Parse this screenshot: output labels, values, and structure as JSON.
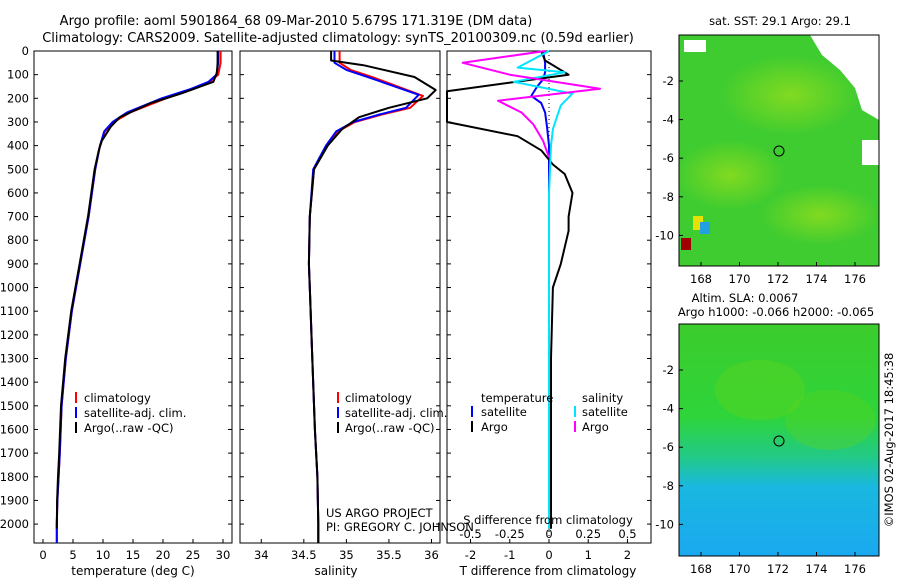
{
  "header": {
    "title_line1": "Argo profile: aoml 5901864_68 09-Mar-2010 5.679S 171.319E (DM data)",
    "title_line2": "Climatology: CARS2009. Satellite-adjusted climatology: synTS_20100309.nc (0.59d earlier)"
  },
  "colors": {
    "climatology": "#ff0000",
    "satellite": "#0000ff",
    "argo": "#000000",
    "satellite_sal": "#00e5ff",
    "argo_sal": "#ff00ff"
  },
  "depth_axis": {
    "ticks": [
      0,
      100,
      200,
      300,
      400,
      500,
      600,
      700,
      800,
      900,
      1000,
      1100,
      1200,
      1300,
      1400,
      1500,
      1600,
      1700,
      1800,
      1900,
      2000
    ],
    "range": [
      0,
      2080
    ]
  },
  "chart_data": [
    {
      "type": "line",
      "name": "temperature",
      "xlabel": "temperature (deg C)",
      "xlim": [
        -1.5,
        31.5
      ],
      "xticks": [
        0,
        5,
        10,
        15,
        20,
        25,
        30
      ],
      "legend": [
        "climatology",
        "satellite-adj. clim.",
        "Argo(..raw -QC)"
      ],
      "series": [
        {
          "name": "climatology",
          "color": "#ff0000",
          "temp": [
            29.6,
            29.6,
            29.2,
            27.8,
            25.2,
            20.5,
            14.5,
            11.8,
            10.3,
            9.5,
            8.7,
            7.6,
            6.9,
            6.2,
            5.5,
            4.8,
            3.8,
            3.1,
            2.8,
            2.6,
            2.4,
            2.3,
            2.3
          ],
          "depth": [
            0,
            50,
            100,
            130,
            160,
            200,
            260,
            300,
            340,
            400,
            500,
            700,
            800,
            900,
            1000,
            1100,
            1300,
            1500,
            1700,
            1800,
            1900,
            2000,
            2080
          ]
        },
        {
          "name": "satellite",
          "color": "#0000ff",
          "temp": [
            29.2,
            29.2,
            28.9,
            27.6,
            24.7,
            19.8,
            14.0,
            11.6,
            10.2,
            9.5,
            8.7,
            7.6,
            6.9,
            6.2,
            5.5,
            4.8,
            3.8,
            3.1,
            2.8,
            2.6,
            2.4,
            2.3,
            2.3
          ],
          "depth": [
            0,
            50,
            100,
            130,
            160,
            200,
            260,
            300,
            340,
            400,
            500,
            700,
            800,
            900,
            1000,
            1100,
            1300,
            1500,
            1700,
            1800,
            1900,
            2000,
            2080
          ]
        },
        {
          "name": "argo",
          "color": "#000000",
          "temp": [
            29.1,
            29.1,
            29.0,
            28.4,
            23.0,
            18.0,
            12.8,
            11.3,
            9.8,
            9.3,
            8.6,
            7.5,
            6.8,
            6.1,
            5.4,
            4.7,
            3.7,
            3.0,
            2.7,
            2.5,
            2.35,
            2.3
          ],
          "depth": [
            0,
            50,
            90,
            130,
            180,
            220,
            280,
            320,
            380,
            420,
            500,
            700,
            800,
            900,
            1000,
            1100,
            1300,
            1500,
            1700,
            1800,
            1900,
            2020
          ]
        }
      ]
    },
    {
      "type": "line",
      "name": "salinity",
      "xlabel": "salinity",
      "xlim": [
        33.75,
        36.1
      ],
      "xticks": [
        34,
        34.5,
        35,
        35.5,
        36
      ],
      "xticklabels": [
        "34",
        "34.5",
        "35",
        "35.5",
        "36"
      ],
      "legend": [
        "climatology",
        "satellite-adj. clim.",
        "Argo(..raw -QC)"
      ],
      "annotation": [
        "US ARGO PROJECT",
        "PI: GREGORY C. JOHNSON"
      ],
      "series": [
        {
          "name": "climatology",
          "color": "#ff0000",
          "sal": [
            34.92,
            34.92,
            35.05,
            35.3,
            35.9,
            35.75,
            35.4,
            35.1,
            34.9,
            34.78,
            34.62,
            34.57,
            34.56,
            34.57,
            34.6,
            34.63,
            34.66,
            34.67,
            34.67
          ],
          "depth": [
            0,
            50,
            80,
            110,
            190,
            240,
            270,
            300,
            340,
            400,
            500,
            700,
            900,
            1000,
            1300,
            1600,
            1800,
            2000,
            2080
          ]
        },
        {
          "name": "satellite",
          "color": "#0000ff",
          "sal": [
            34.86,
            34.86,
            35.0,
            35.25,
            35.85,
            35.7,
            35.37,
            35.08,
            34.88,
            34.76,
            34.61,
            34.57,
            34.56,
            34.57,
            34.6,
            34.63,
            34.66,
            34.67,
            34.67
          ],
          "depth": [
            0,
            50,
            80,
            110,
            185,
            240,
            270,
            300,
            340,
            400,
            500,
            700,
            900,
            1000,
            1300,
            1600,
            1800,
            2000,
            2080
          ]
        },
        {
          "name": "argo",
          "color": "#000000",
          "sal": [
            34.82,
            34.82,
            35.2,
            35.8,
            36.05,
            35.95,
            35.5,
            35.15,
            34.95,
            34.78,
            34.62,
            34.57,
            34.56,
            34.57,
            34.6,
            34.63,
            34.66,
            34.67,
            34.67
          ],
          "depth": [
            0,
            40,
            60,
            110,
            165,
            200,
            240,
            280,
            330,
            400,
            500,
            700,
            900,
            1000,
            1300,
            1600,
            1800,
            2000,
            2080
          ]
        }
      ]
    },
    {
      "type": "line",
      "name": "differences",
      "xlabel_bottom": "T difference from climatology",
      "xlabel_top": "S difference from climatology",
      "t_xlim": [
        -2.6,
        2.6
      ],
      "t_xticks": [
        -2,
        -1,
        0,
        1,
        2
      ],
      "s_xticks": [
        "-0.5",
        "-0.25",
        "0",
        "0.25",
        "0.5"
      ],
      "s_xtick_pos": [
        -2,
        -1,
        0,
        1,
        2
      ],
      "legend_temperature": [
        "temperature",
        "satellite",
        "Argo"
      ],
      "legend_salinity": [
        "salinity",
        "satellite",
        "Argo"
      ],
      "series": [
        {
          "name": "temperature satellite",
          "color": "#0000ff",
          "dx": [
            -0.15,
            -0.1,
            -0.1,
            -0.15,
            -0.3,
            -0.45,
            -0.2,
            -0.1,
            -0.05,
            0,
            0,
            0,
            0,
            0
          ],
          "depth": [
            0,
            50,
            90,
            120,
            150,
            190,
            220,
            260,
            320,
            400,
            600,
            1000,
            1500,
            2020
          ]
        },
        {
          "name": "temperature argo",
          "color": "#000000",
          "dx": [
            -0.2,
            -0.1,
            0.5,
            -2.6,
            -2.6,
            -0.8,
            -0.2,
            0.1,
            0.4,
            0.6,
            0.5,
            0.5,
            0.3,
            0.1,
            0.05,
            0.05
          ],
          "depth": [
            0,
            40,
            100,
            170,
            300,
            360,
            420,
            480,
            520,
            600,
            700,
            760,
            900,
            1000,
            1300,
            2020
          ]
        },
        {
          "name": "salinity satellite",
          "color": "#00e5ff",
          "dx": [
            0,
            -0.8,
            0.4,
            -0.9,
            0.6,
            0.3,
            0.2,
            0.1,
            0.05,
            0,
            0
          ],
          "depth": [
            0,
            70,
            90,
            130,
            180,
            230,
            280,
            330,
            400,
            600,
            2020
          ]
        },
        {
          "name": "salinity argo",
          "color": "#ff00ff",
          "dx": [
            -0.1,
            -2.2,
            -1.0,
            1.3,
            -1.3,
            -0.7,
            -0.4,
            -0.15,
            0
          ],
          "depth": [
            0,
            50,
            100,
            160,
            210,
            260,
            310,
            380,
            450
          ]
        }
      ]
    }
  ],
  "maps": {
    "sst_title": "sat. SST: 29.1  Argo: 29.1",
    "sla_title_line1": "Altim. SLA: 0.0067",
    "sla_title_line2": "Argo h1000: -0.066 h2000: -0.065",
    "yticks": [
      "-2",
      "-4",
      "-6",
      "-8",
      "-10"
    ],
    "xticks": [
      "168",
      "170",
      "172",
      "174",
      "176"
    ]
  },
  "credit": "©IMOS 02-Aug-2017 18:45:38"
}
